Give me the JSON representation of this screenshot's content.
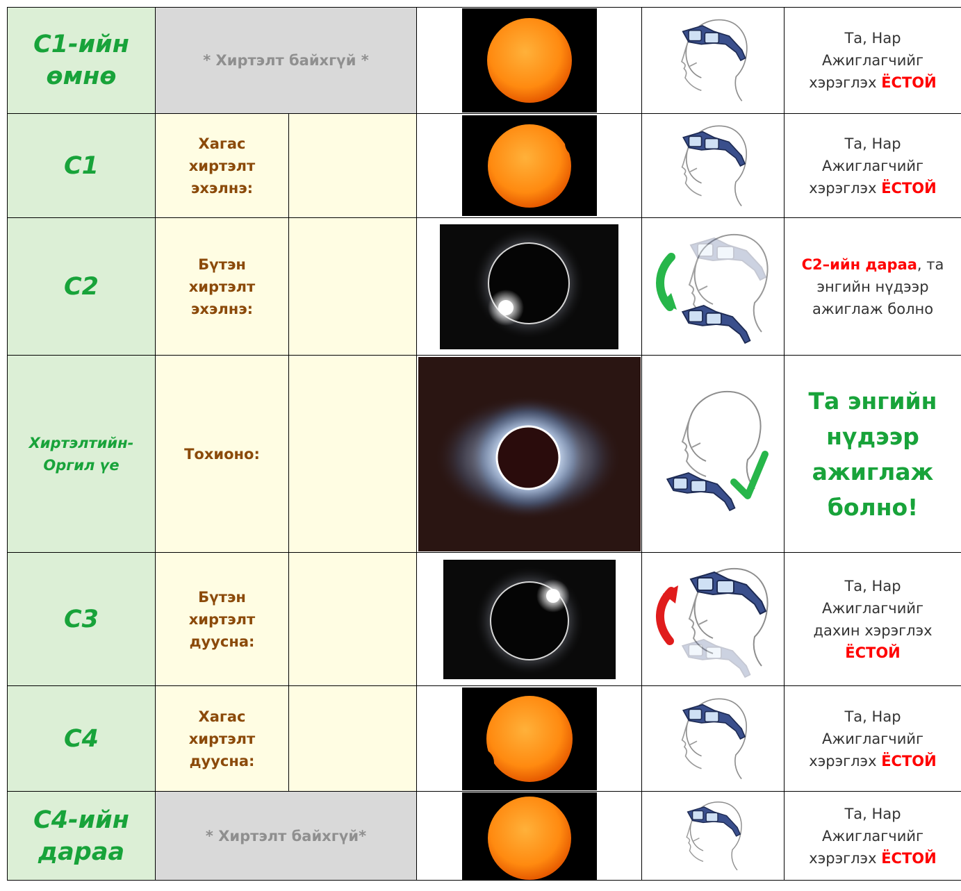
{
  "rows": [
    {
      "phase": "С1-ийн өмнө",
      "no_eclipse": "* Хиртэлт байхгүй *",
      "advice": {
        "line1": "Та, Нар",
        "line2": "Ажиглагчийг",
        "line3": "хэрэглэх",
        "emph": "ЁСТОЙ"
      }
    },
    {
      "phase": "С1",
      "event": {
        "line1": "Хагас",
        "line2": "хиртэлт",
        "line3": "эхэлнэ:"
      },
      "advice": {
        "line1": "Та, Нар",
        "line2": "Ажиглагчийг",
        "line3": "хэрэглэх",
        "emph": "ЁСТОЙ"
      }
    },
    {
      "phase": "С2",
      "event": {
        "line1": "Бүтэн",
        "line2": "хиртэлт",
        "line3": "эхэлнэ:"
      },
      "advice": {
        "lead": "С2–ийн дараа",
        "rest": ", та",
        "line2": "энгийн нүдээр",
        "line3": "ажиглаж болно"
      }
    },
    {
      "phase_line1": "Хиртэлтийн-",
      "phase_line2": "Оргил үе",
      "event": "Тохионо:",
      "advice": {
        "line1": "Та энгийн",
        "line2": "нүдээр",
        "line3": "ажиглаж",
        "line4": "болно!"
      }
    },
    {
      "phase": "С3",
      "event": {
        "line1": "Бүтэн",
        "line2": "хиртэлт",
        "line3": "дуусна:"
      },
      "advice": {
        "line1": "Та, Нар",
        "line2": "Ажиглагчийг",
        "line3": "дахин хэрэглэх",
        "emph": "ЁСТОЙ"
      }
    },
    {
      "phase": "С4",
      "event": {
        "line1": "Хагас",
        "line2": "хиртэлт",
        "line3": "дууcна:"
      },
      "advice": {
        "line1": "Та, Нар",
        "line2": "Ажиглагчийг",
        "line3": "хэрэглэх",
        "emph": "ЁСТОЙ"
      }
    },
    {
      "phase_line1": "С4-ийн",
      "phase_line2": "дараа",
      "no_eclipse": "* Хиртэлт байхгүй*",
      "advice": {
        "line1": "Та, Нар",
        "line2": "Ажиглагчийг",
        "line3": "хэрэглэх",
        "emph": "ЁСТОЙ"
      }
    }
  ],
  "colors": {
    "phase_bg": "#dcefd6",
    "phase_text": "#18a33a",
    "event_bg": "#fffde3",
    "event_text": "#8b4a0a",
    "no_eclipse_bg": "#d9d9d9",
    "emphasis": "#ff0000"
  },
  "icons": {
    "sun": "sun-orange-disc",
    "eclipse_diamond": "diamond-ring",
    "corona": "solar-corona",
    "head_glasses": "head-with-eclipse-glasses",
    "arrow_down": "green-curved-arrow",
    "arrow_up": "red-curved-arrow",
    "check": "green-checkmark"
  }
}
